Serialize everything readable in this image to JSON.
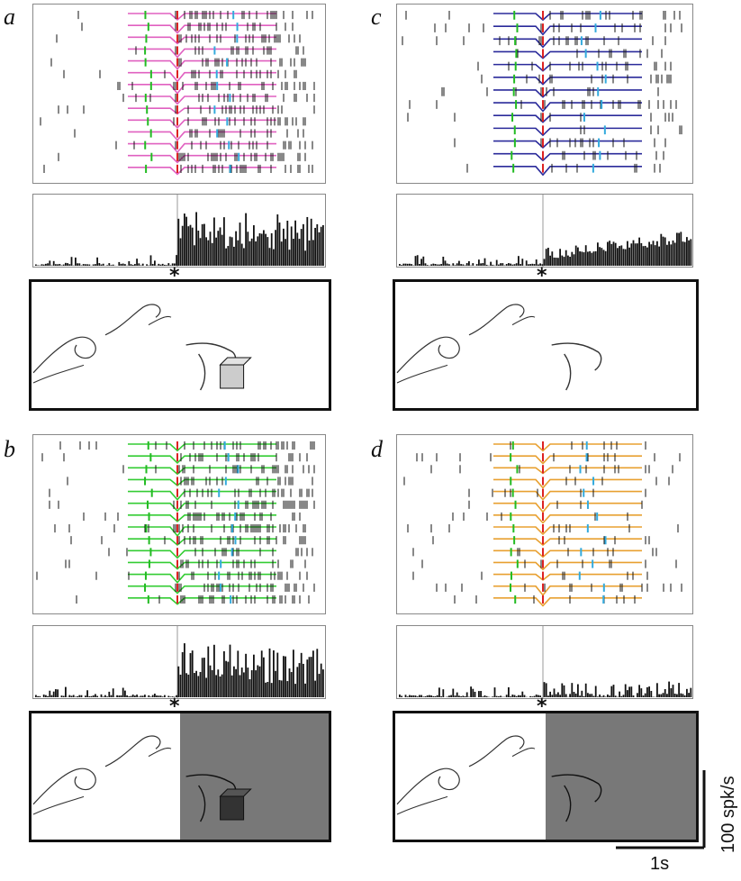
{
  "panels": [
    {
      "id": "a",
      "letter": "a",
      "trace_color": "#e060c0",
      "dark_background": false,
      "object": "cube",
      "burst": "high",
      "trials": 14
    },
    {
      "id": "c",
      "letter": "c",
      "trace_color": "#2a2a9a",
      "dark_background": false,
      "object": "none",
      "burst": "low",
      "trials": 13
    },
    {
      "id": "b",
      "letter": "b",
      "trace_color": "#33cc33",
      "dark_background": true,
      "object": "cube",
      "burst": "high",
      "trials": 14
    },
    {
      "id": "d",
      "letter": "d",
      "trace_color": "#e8a030",
      "dark_background": true,
      "object": "none",
      "burst": "lowest",
      "trials": 14
    }
  ],
  "alignment_marker": "*",
  "event_colors": {
    "green": "#22bb22",
    "red": "#dd2222",
    "cyan": "#33aadd",
    "spike": "#111111"
  },
  "scale": {
    "time_label": "1s",
    "rate_label": "100 spk/s"
  }
}
